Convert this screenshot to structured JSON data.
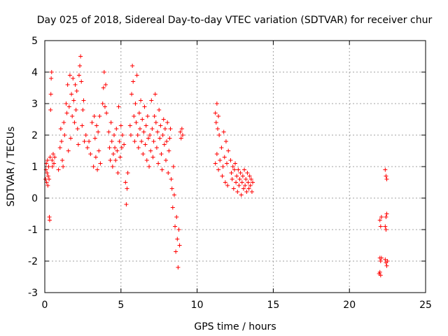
{
  "chart_data": {
    "type": "scatter",
    "title": "Day 025 of 2018, Sidereal Day-to-day VTEC variation (SDTVAR) for receiver chur",
    "xlabel": "GPS time / hours",
    "ylabel": "SDTVAR / TECUs",
    "xlim": [
      0,
      25
    ],
    "ylim": [
      -3,
      5
    ],
    "xticks": [
      0,
      5,
      10,
      15,
      20,
      25
    ],
    "yticks": [
      -3,
      -2,
      -1,
      0,
      1,
      2,
      3,
      4,
      5
    ],
    "grid": true,
    "marker": "+",
    "series_color": "#ff0000",
    "series": [
      {
        "name": "SDTVAR",
        "points": [
          [
            0.05,
            0.6
          ],
          [
            0.08,
            0.9
          ],
          [
            0.1,
            1.1
          ],
          [
            0.12,
            0.5
          ],
          [
            0.15,
            0.8
          ],
          [
            0.18,
            1.2
          ],
          [
            0.2,
            0.4
          ],
          [
            0.22,
            0.7
          ],
          [
            0.25,
            1.0
          ],
          [
            0.28,
            0.6
          ],
          [
            0.3,
            -0.6
          ],
          [
            0.32,
            -0.7
          ],
          [
            0.35,
            1.3
          ],
          [
            0.38,
            2.8
          ],
          [
            0.4,
            3.3
          ],
          [
            0.42,
            3.8
          ],
          [
            0.45,
            4.0
          ],
          [
            0.48,
            1.2
          ],
          [
            0.5,
            1.0
          ],
          [
            0.55,
            1.4
          ],
          [
            0.6,
            1.1
          ],
          [
            0.65,
            1.3
          ],
          [
            0.9,
            0.9
          ],
          [
            1.0,
            1.6
          ],
          [
            1.05,
            2.2
          ],
          [
            1.1,
            1.8
          ],
          [
            1.15,
            1.2
          ],
          [
            1.2,
            1.0
          ],
          [
            1.25,
            2.4
          ],
          [
            1.3,
            2.0
          ],
          [
            1.4,
            3.0
          ],
          [
            1.45,
            2.7
          ],
          [
            1.5,
            3.6
          ],
          [
            1.55,
            1.5
          ],
          [
            1.6,
            2.9
          ],
          [
            1.65,
            3.9
          ],
          [
            1.7,
            1.9
          ],
          [
            1.75,
            3.3
          ],
          [
            1.8,
            2.6
          ],
          [
            1.85,
            3.8
          ],
          [
            1.9,
            3.1
          ],
          [
            1.95,
            2.4
          ],
          [
            2.0,
            3.6
          ],
          [
            2.05,
            2.8
          ],
          [
            2.1,
            3.4
          ],
          [
            2.15,
            2.2
          ],
          [
            2.2,
            1.7
          ],
          [
            2.25,
            3.9
          ],
          [
            2.3,
            4.2
          ],
          [
            2.35,
            4.5
          ],
          [
            2.4,
            3.7
          ],
          [
            2.45,
            2.3
          ],
          [
            2.5,
            2.8
          ],
          [
            2.55,
            3.1
          ],
          [
            2.6,
            1.8
          ],
          [
            2.7,
            2.0
          ],
          [
            2.8,
            1.6
          ],
          [
            2.9,
            1.8
          ],
          [
            3.0,
            1.4
          ],
          [
            3.1,
            2.4
          ],
          [
            3.2,
            1.0
          ],
          [
            3.25,
            2.6
          ],
          [
            3.3,
            1.9
          ],
          [
            3.35,
            1.3
          ],
          [
            3.4,
            2.3
          ],
          [
            3.45,
            0.9
          ],
          [
            3.5,
            2.1
          ],
          [
            3.55,
            1.5
          ],
          [
            3.6,
            2.6
          ],
          [
            3.65,
            1.1
          ],
          [
            3.8,
            3.0
          ],
          [
            3.85,
            3.5
          ],
          [
            3.9,
            4.0
          ],
          [
            3.95,
            2.9
          ],
          [
            4.0,
            3.6
          ],
          [
            4.05,
            2.7
          ],
          [
            4.2,
            2.1
          ],
          [
            4.25,
            1.6
          ],
          [
            4.3,
            1.2
          ],
          [
            4.35,
            2.4
          ],
          [
            4.4,
            1.8
          ],
          [
            4.45,
            1.0
          ],
          [
            4.5,
            1.4
          ],
          [
            4.55,
            2.0
          ],
          [
            4.6,
            1.6
          ],
          [
            4.65,
            1.2
          ],
          [
            4.7,
            2.2
          ],
          [
            4.75,
            1.5
          ],
          [
            4.8,
            0.8
          ],
          [
            4.85,
            2.9
          ],
          [
            4.9,
            1.8
          ],
          [
            4.95,
            1.3
          ],
          [
            5.0,
            2.3
          ],
          [
            5.05,
            1.6
          ],
          [
            5.1,
            2.0
          ],
          [
            5.2,
            1.7
          ],
          [
            5.3,
            0.5
          ],
          [
            5.35,
            -0.2
          ],
          [
            5.4,
            0.3
          ],
          [
            5.45,
            0.8
          ],
          [
            5.6,
            2.3
          ],
          [
            5.65,
            2.0
          ],
          [
            5.7,
            3.3
          ],
          [
            5.75,
            4.2
          ],
          [
            5.8,
            3.7
          ],
          [
            5.85,
            2.6
          ],
          [
            5.9,
            1.8
          ],
          [
            5.95,
            3.0
          ],
          [
            6.0,
            2.4
          ],
          [
            6.05,
            3.9
          ],
          [
            6.1,
            2.0
          ],
          [
            6.15,
            1.6
          ],
          [
            6.2,
            2.7
          ],
          [
            6.25,
            2.2
          ],
          [
            6.3,
            3.1
          ],
          [
            6.35,
            1.8
          ],
          [
            6.4,
            2.5
          ],
          [
            6.45,
            1.4
          ],
          [
            6.5,
            2.1
          ],
          [
            6.55,
            2.9
          ],
          [
            6.6,
            1.7
          ],
          [
            6.65,
            2.3
          ],
          [
            6.7,
            1.2
          ],
          [
            6.75,
            2.6
          ],
          [
            6.8,
            1.9
          ],
          [
            6.85,
            1.0
          ],
          [
            6.9,
            2.0
          ],
          [
            6.95,
            1.5
          ],
          [
            7.0,
            3.1
          ],
          [
            7.05,
            2.2
          ],
          [
            7.1,
            1.3
          ],
          [
            7.15,
            1.8
          ],
          [
            7.2,
            2.6
          ],
          [
            7.25,
            3.3
          ],
          [
            7.3,
            2.4
          ],
          [
            7.35,
            1.6
          ],
          [
            7.4,
            2.1
          ],
          [
            7.45,
            1.1
          ],
          [
            7.5,
            2.8
          ],
          [
            7.55,
            1.9
          ],
          [
            7.6,
            2.3
          ],
          [
            7.65,
            1.4
          ],
          [
            7.7,
            0.9
          ],
          [
            7.75,
            2.0
          ],
          [
            7.8,
            2.5
          ],
          [
            7.85,
            1.7
          ],
          [
            7.9,
            2.2
          ],
          [
            7.95,
            1.2
          ],
          [
            8.0,
            1.8
          ],
          [
            8.05,
            2.4
          ],
          [
            8.1,
            0.8
          ],
          [
            8.15,
            1.5
          ],
          [
            8.2,
            1.9
          ],
          [
            8.25,
            2.2
          ],
          [
            8.3,
            0.6
          ],
          [
            8.35,
            0.3
          ],
          [
            8.4,
            -0.3
          ],
          [
            8.45,
            1.0
          ],
          [
            8.5,
            0.1
          ],
          [
            8.55,
            -0.9
          ],
          [
            8.6,
            -1.7
          ],
          [
            8.65,
            -0.6
          ],
          [
            8.7,
            -1.3
          ],
          [
            8.75,
            -2.2
          ],
          [
            8.8,
            -1.0
          ],
          [
            8.85,
            -1.5
          ],
          [
            8.9,
            2.1
          ],
          [
            8.95,
            1.9
          ],
          [
            9.0,
            2.2
          ],
          [
            9.05,
            2.0
          ],
          [
            11.2,
            2.7
          ],
          [
            11.25,
            2.4
          ],
          [
            11.3,
            3.0
          ],
          [
            11.35,
            2.2
          ],
          [
            11.4,
            2.6
          ],
          [
            11.45,
            2.0
          ],
          [
            11.2,
            1.1
          ],
          [
            11.3,
            1.4
          ],
          [
            11.4,
            0.9
          ],
          [
            11.5,
            1.2
          ],
          [
            11.6,
            1.6
          ],
          [
            11.65,
            0.7
          ],
          [
            11.7,
            1.0
          ],
          [
            11.75,
            2.1
          ],
          [
            11.8,
            1.3
          ],
          [
            11.85,
            0.5
          ],
          [
            11.9,
            1.8
          ],
          [
            11.95,
            1.1
          ],
          [
            12.0,
            0.4
          ],
          [
            12.05,
            1.5
          ],
          [
            12.2,
            1.2
          ],
          [
            12.25,
            0.8
          ],
          [
            12.3,
            0.6
          ],
          [
            12.35,
            1.0
          ],
          [
            12.4,
            0.3
          ],
          [
            12.45,
            0.9
          ],
          [
            12.5,
            1.1
          ],
          [
            12.55,
            0.5
          ],
          [
            12.6,
            0.7
          ],
          [
            12.65,
            0.2
          ],
          [
            12.7,
            0.9
          ],
          [
            12.75,
            0.4
          ],
          [
            12.8,
            0.6
          ],
          [
            12.85,
            0.8
          ],
          [
            12.9,
            0.1
          ],
          [
            12.95,
            0.5
          ],
          [
            13.0,
            0.7
          ],
          [
            13.05,
            0.3
          ],
          [
            13.1,
            0.9
          ],
          [
            13.15,
            0.4
          ],
          [
            13.2,
            0.6
          ],
          [
            13.25,
            0.2
          ],
          [
            13.3,
            0.8
          ],
          [
            13.35,
            0.5
          ],
          [
            13.4,
            0.3
          ],
          [
            13.45,
            0.7
          ],
          [
            13.5,
            0.4
          ],
          [
            13.55,
            0.6
          ],
          [
            13.6,
            0.2
          ],
          [
            13.65,
            0.5
          ],
          [
            22.0,
            -0.7
          ],
          [
            22.05,
            -0.9
          ],
          [
            22.1,
            -0.6
          ],
          [
            22.0,
            -1.9
          ],
          [
            22.05,
            -2.0
          ],
          [
            22.1,
            -1.9
          ],
          [
            21.95,
            -2.4
          ],
          [
            22.0,
            -2.35
          ],
          [
            22.05,
            -2.45
          ],
          [
            22.35,
            0.9
          ],
          [
            22.4,
            0.7
          ],
          [
            22.45,
            0.6
          ],
          [
            22.35,
            -0.9
          ],
          [
            22.4,
            -1.0
          ],
          [
            22.45,
            -0.5
          ],
          [
            22.35,
            -1.95
          ],
          [
            22.4,
            -2.05
          ],
          [
            22.45,
            -2.15
          ],
          [
            22.5,
            -2.0
          ],
          [
            22.4,
            -0.6
          ]
        ]
      }
    ]
  }
}
